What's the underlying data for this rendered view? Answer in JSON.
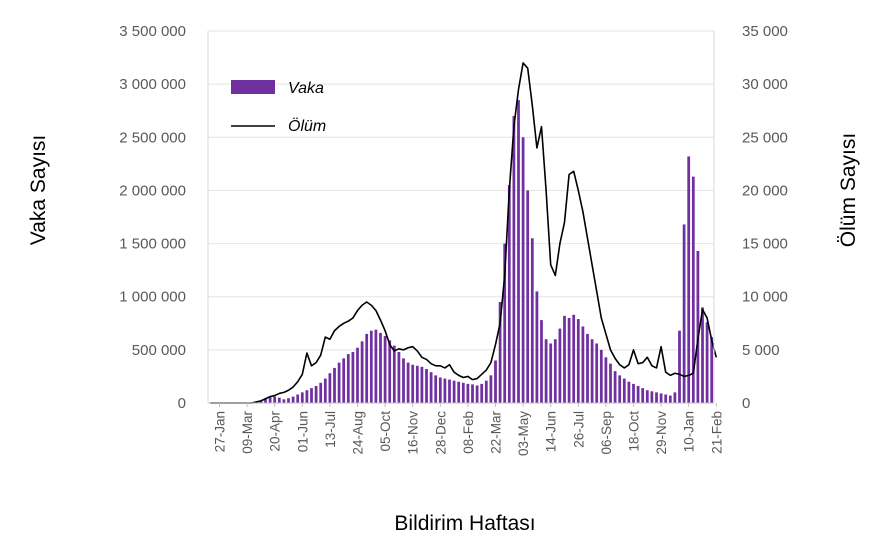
{
  "chart_data": {
    "type": "bar",
    "xlabel": "Bildirim Haftası",
    "ylabel": "Vaka Sayısı",
    "y2label": "Ölüm Sayısı",
    "x_tick_labels": [
      "27-Jan",
      "09-Mar",
      "20-Apr",
      "01-Jun",
      "13-Jul",
      "24-Aug",
      "05-Oct",
      "16-Nov",
      "28-Dec",
      "08-Feb",
      "22-Mar",
      "03-May",
      "14-Jun",
      "26-Jul",
      "06-Sep",
      "18-Oct",
      "29-Nov",
      "10-Jan",
      "21-Feb"
    ],
    "x_tick_week_index": [
      2,
      8,
      14,
      20,
      26,
      32,
      38,
      44,
      50,
      56,
      62,
      68,
      74,
      80,
      86,
      92,
      98,
      104,
      110
    ],
    "ylim": [
      0,
      3500000
    ],
    "y_ticks": [
      0,
      500000,
      1000000,
      1500000,
      2000000,
      2500000,
      3000000,
      3500000
    ],
    "y_tick_labels": [
      "0",
      "500 000",
      "1 000 000",
      "1 500 000",
      "2 000 000",
      "2 500 000",
      "3 000 000",
      "3 500 000"
    ],
    "y2lim": [
      0,
      35000
    ],
    "y2_ticks": [
      0,
      5000,
      10000,
      15000,
      20000,
      25000,
      30000,
      35000
    ],
    "y2_tick_labels": [
      "0",
      "5 000",
      "10 000",
      "15 000",
      "20 000",
      "25 000",
      "30 000",
      "35 000"
    ],
    "legend_position": "top-left",
    "series": [
      {
        "name": "Vaka",
        "type": "bar",
        "axis": "left",
        "color": "#7030A0",
        "values": [
          0,
          0,
          0,
          0,
          0,
          0,
          0,
          0,
          0,
          2000,
          8000,
          15000,
          40000,
          55000,
          60000,
          50000,
          35000,
          45000,
          60000,
          80000,
          100000,
          120000,
          140000,
          160000,
          190000,
          230000,
          280000,
          330000,
          380000,
          420000,
          460000,
          480000,
          520000,
          580000,
          650000,
          680000,
          690000,
          660000,
          630000,
          590000,
          540000,
          480000,
          420000,
          380000,
          360000,
          350000,
          340000,
          320000,
          290000,
          260000,
          240000,
          230000,
          220000,
          210000,
          200000,
          190000,
          180000,
          175000,
          165000,
          180000,
          210000,
          260000,
          400000,
          950000,
          1500000,
          2050000,
          2700000,
          2850000,
          2500000,
          2000000,
          1550000,
          1050000,
          780000,
          600000,
          560000,
          600000,
          700000,
          820000,
          800000,
          830000,
          790000,
          720000,
          650000,
          600000,
          560000,
          500000,
          430000,
          370000,
          300000,
          260000,
          230000,
          200000,
          180000,
          160000,
          140000,
          120000,
          110000,
          100000,
          90000,
          80000,
          70000,
          100000,
          680000,
          1680000,
          2320000,
          2130000,
          1430000,
          900000,
          760000,
          620000
        ]
      },
      {
        "name": "Ölüm",
        "type": "line",
        "axis": "right",
        "color": "#000000",
        "values": [
          0,
          0,
          0,
          0,
          0,
          0,
          0,
          0,
          0,
          0,
          100,
          200,
          400,
          600,
          700,
          900,
          1000,
          1200,
          1500,
          2000,
          2700,
          4700,
          3500,
          3800,
          4500,
          6200,
          6000,
          6800,
          7200,
          7500,
          7700,
          8000,
          8700,
          9200,
          9500,
          9200,
          8700,
          7800,
          6800,
          5500,
          4900,
          5100,
          5000,
          5200,
          5300,
          4900,
          4300,
          4100,
          3700,
          3500,
          3500,
          3300,
          3600,
          2900,
          2600,
          2400,
          2500,
          2200,
          2300,
          2700,
          3100,
          3800,
          5500,
          7500,
          12000,
          20000,
          26000,
          29500,
          32000,
          31500,
          28000,
          24000,
          26000,
          20000,
          13000,
          12000,
          15000,
          17000,
          21500,
          21800,
          20000,
          18000,
          15500,
          13000,
          10500,
          8000,
          6500,
          5000,
          4200,
          3600,
          3300,
          3600,
          5000,
          3700,
          3800,
          4300,
          3500,
          3300,
          5300,
          2900,
          2600,
          2800,
          2700,
          2500,
          2600,
          2800,
          6000,
          8800,
          8000,
          5900,
          4300
        ]
      }
    ]
  }
}
